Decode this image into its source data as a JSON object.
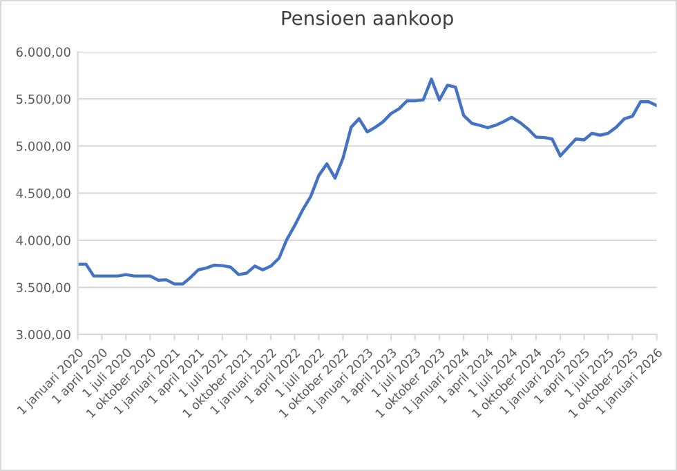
{
  "chart_data": {
    "type": "line",
    "title": "Pensioen aankoop",
    "x": [
      "2020-01",
      "2020-02",
      "2020-03",
      "2020-04",
      "2020-05",
      "2020-06",
      "2020-07",
      "2020-08",
      "2020-09",
      "2020-10",
      "2020-11",
      "2020-12",
      "2021-01",
      "2021-02",
      "2021-03",
      "2021-04",
      "2021-05",
      "2021-06",
      "2021-07",
      "2021-08",
      "2021-09",
      "2021-10",
      "2021-11",
      "2021-12",
      "2022-01",
      "2022-02",
      "2022-03",
      "2022-04",
      "2022-05",
      "2022-06",
      "2022-07",
      "2022-08",
      "2022-09",
      "2022-10",
      "2022-11",
      "2022-12",
      "2023-01",
      "2023-02",
      "2023-03",
      "2023-04",
      "2023-05",
      "2023-06",
      "2023-07",
      "2023-08",
      "2023-09",
      "2023-10",
      "2023-11",
      "2023-12",
      "2024-01",
      "2024-02",
      "2024-03",
      "2024-04",
      "2024-05",
      "2024-06",
      "2024-07",
      "2024-08",
      "2024-09",
      "2024-10",
      "2024-11",
      "2024-12",
      "2025-01",
      "2025-02",
      "2025-03",
      "2025-04",
      "2025-05",
      "2025-06",
      "2025-07",
      "2025-08",
      "2025-09",
      "2025-10",
      "2025-11",
      "2025-12",
      "2026-01"
    ],
    "series": [
      {
        "color": "#4472c4",
        "values": [
          3745,
          3745,
          3620,
          3620,
          3620,
          3620,
          3635,
          3620,
          3620,
          3620,
          3575,
          3580,
          3535,
          3535,
          3600,
          3685,
          3705,
          3735,
          3730,
          3715,
          3635,
          3650,
          3725,
          3685,
          3725,
          3810,
          4000,
          4155,
          4320,
          4465,
          4685,
          4810,
          4660,
          4870,
          5200,
          5290,
          5150,
          5200,
          5255,
          5345,
          5395,
          5480,
          5480,
          5490,
          5710,
          5490,
          5645,
          5625,
          5325,
          5240,
          5220,
          5195,
          5220,
          5260,
          5305,
          5250,
          5180,
          5095,
          5090,
          5075,
          4895,
          4990,
          5075,
          5065,
          5135,
          5115,
          5135,
          5200,
          5290,
          5315,
          5470,
          5470,
          5430
        ]
      }
    ],
    "xlim": [
      "2020-01",
      "2026-01"
    ],
    "xticks": [
      {
        "value": "2020-01",
        "label": "1 januari 2020"
      },
      {
        "value": "2020-04",
        "label": "1 april 2020"
      },
      {
        "value": "2020-07",
        "label": "1 juli 2020"
      },
      {
        "value": "2020-10",
        "label": "1 oktober 2020"
      },
      {
        "value": "2021-01",
        "label": "1 januari 2021"
      },
      {
        "value": "2021-04",
        "label": "1 april 2021"
      },
      {
        "value": "2021-07",
        "label": "1 juli 2021"
      },
      {
        "value": "2021-10",
        "label": "1 oktober 2021"
      },
      {
        "value": "2022-01",
        "label": "1 januari 2022"
      },
      {
        "value": "2022-04",
        "label": "1 april 2022"
      },
      {
        "value": "2022-07",
        "label": "1 juli 2022"
      },
      {
        "value": "2022-10",
        "label": "1 oktober 2022"
      },
      {
        "value": "2023-01",
        "label": "1 januari 2023"
      },
      {
        "value": "2023-04",
        "label": "1 april 2023"
      },
      {
        "value": "2023-07",
        "label": "1 juli 2023"
      },
      {
        "value": "2023-10",
        "label": "1 oktober 2023"
      },
      {
        "value": "2024-01",
        "label": "1 januari 2024"
      },
      {
        "value": "2024-04",
        "label": "1 april 2024"
      },
      {
        "value": "2024-07",
        "label": "1 juli 2024"
      },
      {
        "value": "2024-10",
        "label": "1 oktober 2024"
      },
      {
        "value": "2025-01",
        "label": "1 januari 2025"
      },
      {
        "value": "2025-04",
        "label": "1 april 2025"
      },
      {
        "value": "2025-07",
        "label": "1 juli 2025"
      },
      {
        "value": "2025-10",
        "label": "1 oktober 2025"
      },
      {
        "value": "2026-01",
        "label": "1 januari 2026"
      }
    ],
    "ylim": [
      3000,
      6000
    ],
    "yticks": [
      {
        "value": 3000,
        "label": "3.000,00"
      },
      {
        "value": 3500,
        "label": "3.500,00"
      },
      {
        "value": 4000,
        "label": "4.000,00"
      },
      {
        "value": 4500,
        "label": "4.500,00"
      },
      {
        "value": 5000,
        "label": "5.000,00"
      },
      {
        "value": 5500,
        "label": "5.500,00"
      },
      {
        "value": 6000,
        "label": "6.000,00"
      }
    ],
    "grid": "y",
    "marker": "none",
    "line_style": "solid"
  }
}
